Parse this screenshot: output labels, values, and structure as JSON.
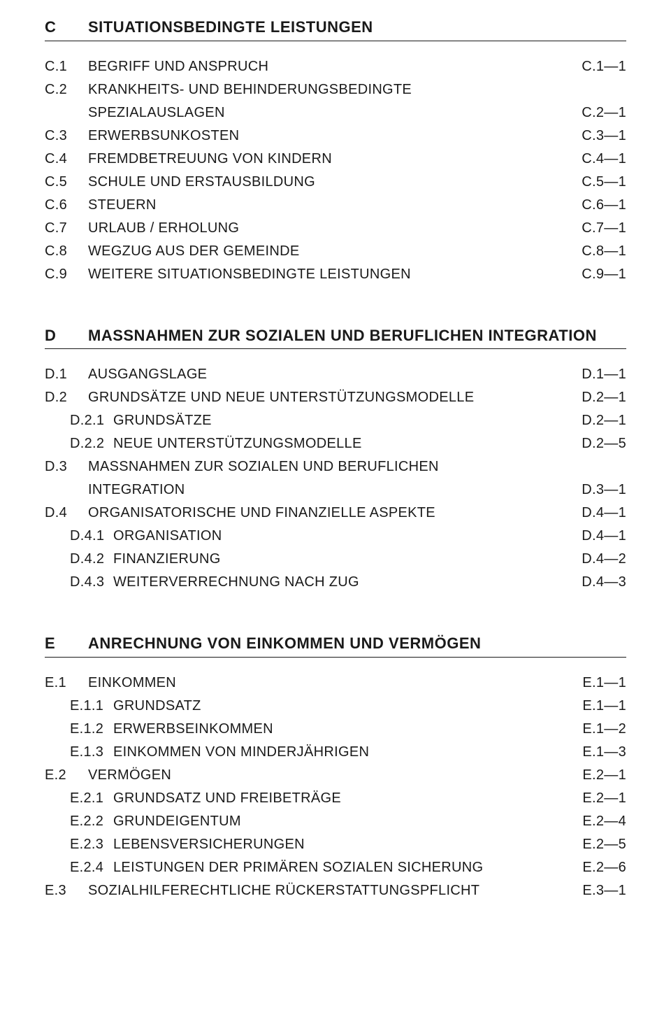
{
  "fontFamily": "Gill Sans, Gill Sans MT, Futura, Century Gothic, sans-serif",
  "textColor": "#1a1a1a",
  "bgColor": "#ffffff",
  "sections": [
    {
      "letter": "C",
      "title": "SITUATIONSBEDINGTE LEISTUNGEN",
      "items": [
        {
          "num": "C.1",
          "label": "BEGRIFF UND ANSPRUCH",
          "page": "C.1—1"
        },
        {
          "num": "C.2",
          "label": "KRANKHEITS- UND BEHINDERUNGSBEDINGTE",
          "cont": "SPEZIALAUSLAGEN",
          "page": "C.2—1"
        },
        {
          "num": "C.3",
          "label": "ERWERBSUNKOSTEN",
          "page": "C.3—1"
        },
        {
          "num": "C.4",
          "label": "FREMDBETREUUNG VON KINDERN",
          "page": "C.4—1"
        },
        {
          "num": "C.5",
          "label": "SCHULE UND ERSTAUSBILDUNG",
          "page": "C.5—1"
        },
        {
          "num": "C.6",
          "label": "STEUERN",
          "page": "C.6—1"
        },
        {
          "num": "C.7",
          "label": "URLAUB / ERHOLUNG",
          "page": "C.7—1"
        },
        {
          "num": "C.8",
          "label": "WEGZUG AUS DER GEMEINDE",
          "page": "C.8—1"
        },
        {
          "num": "C.9",
          "label": "WEITERE SITUATIONSBEDINGTE LEISTUNGEN",
          "page": "C.9—1"
        }
      ]
    },
    {
      "letter": "D",
      "title": "MASSNAHMEN ZUR SOZIALEN UND BERUFLICHEN INTEGRATION",
      "items": [
        {
          "num": "D.1",
          "label": "AUSGANGSLAGE",
          "page": "D.1—1"
        },
        {
          "num": "D.2",
          "label": "GRUNDSÄTZE UND NEUE UNTERSTÜTZUNGSMODELLE",
          "page": "D.2—1"
        },
        {
          "num": "D.2.1",
          "sub": true,
          "label": "GRUNDSÄTZE",
          "page": "D.2—1"
        },
        {
          "num": "D.2.2",
          "sub": true,
          "label": "NEUE UNTERSTÜTZUNGSMODELLE",
          "page": "D.2—5"
        },
        {
          "num": "D.3",
          "label": "MASSNAHMEN ZUR SOZIALEN UND BERUFLICHEN",
          "cont": "INTEGRATION",
          "page": "D.3—1"
        },
        {
          "num": "D.4",
          "label": "ORGANISATORISCHE UND FINANZIELLE ASPEKTE",
          "page": "D.4—1"
        },
        {
          "num": "D.4.1",
          "sub": true,
          "label": "ORGANISATION",
          "page": "D.4—1"
        },
        {
          "num": "D.4.2",
          "sub": true,
          "label": "FINANZIERUNG",
          "page": "D.4—2"
        },
        {
          "num": "D.4.3",
          "sub": true,
          "label": "WEITERVERRECHNUNG NACH ZUG",
          "page": "D.4—3"
        }
      ]
    },
    {
      "letter": "E",
      "title": "ANRECHNUNG VON EINKOMMEN UND VERMÖGEN",
      "items": [
        {
          "num": "E.1",
          "label": "EINKOMMEN",
          "page": "E.1—1"
        },
        {
          "num": "E.1.1",
          "sub": true,
          "label": "GRUNDSATZ",
          "page": "E.1—1"
        },
        {
          "num": "E.1.2",
          "sub": true,
          "label": "ERWERBSEINKOMMEN",
          "page": "E.1—2"
        },
        {
          "num": "E.1.3",
          "sub": true,
          "label": "EINKOMMEN VON MINDERJÄHRIGEN",
          "page": "E.1—3"
        },
        {
          "num": "E.2",
          "label": "VERMÖGEN",
          "page": "E.2—1"
        },
        {
          "num": "E.2.1",
          "sub": true,
          "label": "GRUNDSATZ UND FREIBETRÄGE",
          "page": "E.2—1"
        },
        {
          "num": "E.2.2",
          "sub": true,
          "label": "GRUNDEIGENTUM",
          "page": "E.2—4"
        },
        {
          "num": "E.2.3",
          "sub": true,
          "label": "LEBENSVERSICHERUNGEN",
          "page": "E.2—5"
        },
        {
          "num": "E.2.4",
          "sub": true,
          "label": "LEISTUNGEN DER PRIMÄREN SOZIALEN SICHERUNG",
          "page": "E.2—6"
        },
        {
          "num": "E.3",
          "label": "SOZIALHILFERECHTLICHE RÜCKERSTATTUNGSPFLICHT",
          "page": "E.3—1"
        }
      ]
    }
  ]
}
